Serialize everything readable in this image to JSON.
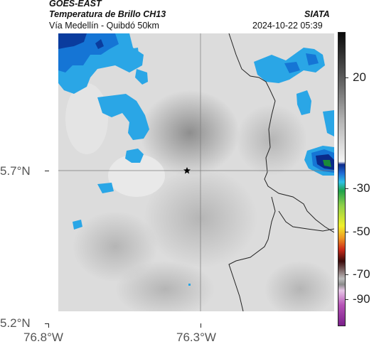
{
  "header": {
    "satellite": "GOES-EAST",
    "product": "Temperatura de Brillo CH13",
    "route": "Vía Medellín - Quibdó 50km",
    "agency": "SIATA",
    "datetime": "2024-10-22 05:39"
  },
  "map": {
    "marker_icon": "star-icon",
    "lat_ticks": [
      "5.7°N",
      "5.2°N"
    ],
    "lon_ticks": [
      "76.8°W",
      "76.3°W"
    ]
  },
  "colorbar": {
    "ticks": [
      "20",
      "-30",
      "-50",
      "-70",
      "-90"
    ]
  }
}
